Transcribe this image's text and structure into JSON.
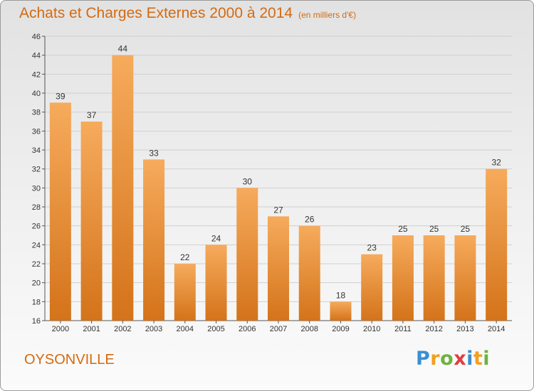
{
  "header": {
    "title": "Achats et Charges Externes 2000 à 2014",
    "subtitle": "(en milliers d'€)"
  },
  "footer": {
    "city": "OYSONVILLE",
    "logo_letters": [
      {
        "char": "P",
        "color": "#3a8fd4"
      },
      {
        "char": "r",
        "color": "#f0a020"
      },
      {
        "char": "o",
        "color": "#6db33f"
      },
      {
        "char": "x",
        "color": "#e23d3d"
      },
      {
        "char": "i",
        "color": "#3a8fd4"
      },
      {
        "char": "t",
        "color": "#f0a020"
      },
      {
        "char": "i",
        "color": "#6db33f"
      }
    ]
  },
  "colors": {
    "title": "#d46a10",
    "bar_light": "#f6ab5c",
    "bar_dark": "#d4731a",
    "grid": "#d0d0d0"
  },
  "chart_data": {
    "type": "bar",
    "title": "Achats et Charges Externes 2000 à 2014",
    "subtitle": "(en milliers d'€)",
    "xlabel": "",
    "ylabel": "",
    "categories": [
      "2000",
      "2001",
      "2002",
      "2003",
      "2004",
      "2005",
      "2006",
      "2007",
      "2008",
      "2009",
      "2010",
      "2011",
      "2012",
      "2013",
      "2014"
    ],
    "values": [
      39,
      37,
      44,
      33,
      22,
      24,
      30,
      27,
      26,
      18,
      23,
      25,
      25,
      25,
      32
    ],
    "ylim": [
      16,
      46
    ],
    "yticks": [
      16,
      18,
      20,
      22,
      24,
      26,
      28,
      30,
      32,
      34,
      36,
      38,
      40,
      42,
      44,
      46
    ],
    "grid": true,
    "legend": "none"
  }
}
